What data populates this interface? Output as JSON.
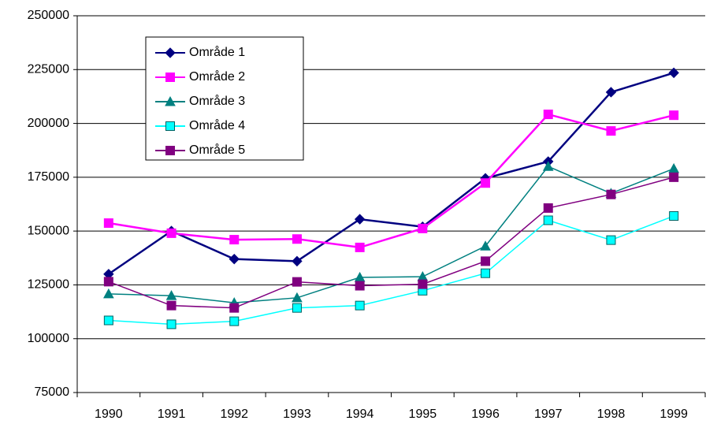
{
  "chart_data": {
    "type": "line",
    "categories": [
      "1990",
      "1991",
      "1992",
      "1993",
      "1994",
      "1995",
      "1996",
      "1997",
      "1998",
      "1999"
    ],
    "series": [
      {
        "name": "Område 1",
        "color": "#000080",
        "marker": "diamond",
        "values": [
          130000,
          150000,
          137000,
          136000,
          155500,
          152000,
          174500,
          182300,
          214500,
          223500
        ]
      },
      {
        "name": "Område 2",
        "color": "#ff00ff",
        "marker": "square",
        "values": [
          153700,
          149000,
          146000,
          146300,
          142400,
          151200,
          172300,
          204200,
          196500,
          203800
        ]
      },
      {
        "name": "Område 3",
        "color": "#008080",
        "marker": "triangle",
        "values": [
          120800,
          120000,
          116700,
          119000,
          128500,
          128800,
          143000,
          180000,
          167500,
          179000
        ]
      },
      {
        "name": "Område 4",
        "color": "#00ffff",
        "marker": "square",
        "values": [
          108500,
          106700,
          108100,
          114300,
          115400,
          122300,
          130400,
          155000,
          145800,
          157000
        ]
      },
      {
        "name": "Område 5",
        "color": "#800080",
        "marker": "square",
        "values": [
          126500,
          115400,
          114300,
          126400,
          124600,
          125300,
          136000,
          160700,
          167000,
          175000
        ]
      }
    ],
    "ylim": [
      75000,
      250000
    ],
    "yticks": [
      75000,
      100000,
      125000,
      150000,
      175000,
      200000,
      225000,
      250000
    ],
    "grid": true,
    "legend": "upper-left"
  }
}
